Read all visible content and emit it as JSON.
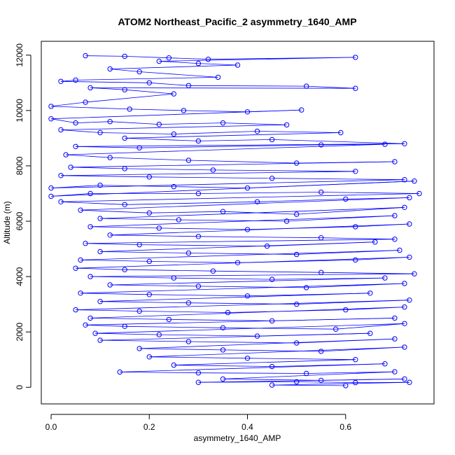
{
  "chart_data": {
    "type": "scatter",
    "title": "ATOM2 Northeast_Pacific_2 asymmetry_1640_AMP",
    "xlabel": "asymmetry_1640_AMP",
    "ylabel": "Altitude (m)",
    "xlim": [
      -0.02,
      0.78
    ],
    "ylim": [
      -600,
      12500
    ],
    "x_ticks": [
      0.0,
      0.2,
      0.4,
      0.6
    ],
    "x_tick_labels": [
      "0.0",
      "0.2",
      "0.4",
      "0.6"
    ],
    "y_ticks": [
      0,
      2000,
      4000,
      6000,
      8000,
      10000,
      12000
    ],
    "y_tick_labels": [
      "0",
      "2000",
      "4000",
      "6000",
      "8000",
      "10000",
      "12000"
    ],
    "grid": false,
    "legend": "none",
    "series_color": "#0000ff",
    "marker": "open-circle",
    "connect_points": true,
    "series": [
      {
        "points": [
          [
            0.07,
            11980
          ],
          [
            0.15,
            11960
          ],
          [
            0.24,
            11900
          ],
          [
            0.32,
            11850
          ],
          [
            0.62,
            11920
          ],
          [
            0.22,
            11780
          ],
          [
            0.3,
            11700
          ],
          [
            0.38,
            11640
          ],
          [
            0.12,
            11500
          ],
          [
            0.18,
            11400
          ],
          [
            0.34,
            11200
          ],
          [
            0.05,
            11100
          ],
          [
            0.02,
            11050
          ],
          [
            0.2,
            11000
          ],
          [
            0.28,
            10900
          ],
          [
            0.52,
            10880
          ],
          [
            0.62,
            10800
          ],
          [
            0.08,
            10820
          ],
          [
            0.15,
            10750
          ],
          [
            0.25,
            10600
          ],
          [
            0.07,
            10300
          ],
          [
            0.0,
            10150
          ],
          [
            0.16,
            10050
          ],
          [
            0.27,
            10000
          ],
          [
            0.4,
            9950
          ],
          [
            0.51,
            10020
          ],
          [
            0.0,
            9700
          ],
          [
            0.05,
            9550
          ],
          [
            0.12,
            9600
          ],
          [
            0.22,
            9500
          ],
          [
            0.35,
            9550
          ],
          [
            0.48,
            9480
          ],
          [
            0.02,
            9300
          ],
          [
            0.1,
            9200
          ],
          [
            0.25,
            9150
          ],
          [
            0.42,
            9250
          ],
          [
            0.59,
            9200
          ],
          [
            0.15,
            9000
          ],
          [
            0.3,
            8900
          ],
          [
            0.45,
            8950
          ],
          [
            0.72,
            8800
          ],
          [
            0.05,
            8700
          ],
          [
            0.18,
            8650
          ],
          [
            0.55,
            8760
          ],
          [
            0.68,
            8780
          ],
          [
            0.03,
            8400
          ],
          [
            0.12,
            8300
          ],
          [
            0.28,
            8200
          ],
          [
            0.5,
            8100
          ],
          [
            0.7,
            8150
          ],
          [
            0.04,
            7950
          ],
          [
            0.15,
            7900
          ],
          [
            0.33,
            7850
          ],
          [
            0.62,
            7800
          ],
          [
            0.02,
            7650
          ],
          [
            0.2,
            7600
          ],
          [
            0.45,
            7550
          ],
          [
            0.72,
            7500
          ],
          [
            0.0,
            7200
          ],
          [
            0.1,
            7300
          ],
          [
            0.25,
            7250
          ],
          [
            0.4,
            7200
          ],
          [
            0.74,
            7450
          ],
          [
            0.0,
            6900
          ],
          [
            0.08,
            7000
          ],
          [
            0.3,
            7000
          ],
          [
            0.55,
            7050
          ],
          [
            0.75,
            7000
          ],
          [
            0.02,
            6700
          ],
          [
            0.15,
            6600
          ],
          [
            0.42,
            6700
          ],
          [
            0.6,
            6800
          ],
          [
            0.73,
            6850
          ],
          [
            0.06,
            6400
          ],
          [
            0.2,
            6300
          ],
          [
            0.35,
            6350
          ],
          [
            0.5,
            6250
          ],
          [
            0.72,
            6500
          ],
          [
            0.1,
            6100
          ],
          [
            0.26,
            6050
          ],
          [
            0.48,
            6000
          ],
          [
            0.7,
            6200
          ],
          [
            0.08,
            5800
          ],
          [
            0.22,
            5750
          ],
          [
            0.4,
            5700
          ],
          [
            0.62,
            5800
          ],
          [
            0.73,
            5900
          ],
          [
            0.12,
            5500
          ],
          [
            0.3,
            5450
          ],
          [
            0.55,
            5400
          ],
          [
            0.7,
            5350
          ],
          [
            0.07,
            5200
          ],
          [
            0.18,
            5150
          ],
          [
            0.44,
            5100
          ],
          [
            0.66,
            5250
          ],
          [
            0.1,
            4900
          ],
          [
            0.28,
            4850
          ],
          [
            0.5,
            4800
          ],
          [
            0.71,
            4950
          ],
          [
            0.06,
            4600
          ],
          [
            0.2,
            4550
          ],
          [
            0.38,
            4500
          ],
          [
            0.62,
            4600
          ],
          [
            0.73,
            4700
          ],
          [
            0.05,
            4300
          ],
          [
            0.15,
            4250
          ],
          [
            0.33,
            4200
          ],
          [
            0.55,
            4150
          ],
          [
            0.74,
            4100
          ],
          [
            0.08,
            4000
          ],
          [
            0.25,
            3950
          ],
          [
            0.45,
            3900
          ],
          [
            0.68,
            3950
          ],
          [
            0.12,
            3700
          ],
          [
            0.3,
            3650
          ],
          [
            0.52,
            3600
          ],
          [
            0.72,
            3750
          ],
          [
            0.06,
            3400
          ],
          [
            0.2,
            3350
          ],
          [
            0.4,
            3300
          ],
          [
            0.65,
            3400
          ],
          [
            0.1,
            3100
          ],
          [
            0.28,
            3050
          ],
          [
            0.5,
            3000
          ],
          [
            0.73,
            3150
          ],
          [
            0.05,
            2800
          ],
          [
            0.18,
            2750
          ],
          [
            0.36,
            2700
          ],
          [
            0.6,
            2800
          ],
          [
            0.72,
            2900
          ],
          [
            0.08,
            2500
          ],
          [
            0.24,
            2450
          ],
          [
            0.45,
            2400
          ],
          [
            0.7,
            2500
          ],
          [
            0.07,
            2250
          ],
          [
            0.15,
            2200
          ],
          [
            0.35,
            2150
          ],
          [
            0.58,
            2100
          ],
          [
            0.72,
            2300
          ],
          [
            0.09,
            1950
          ],
          [
            0.22,
            1900
          ],
          [
            0.42,
            1850
          ],
          [
            0.65,
            1950
          ],
          [
            0.1,
            1700
          ],
          [
            0.28,
            1650
          ],
          [
            0.5,
            1600
          ],
          [
            0.7,
            1750
          ],
          [
            0.18,
            1400
          ],
          [
            0.35,
            1350
          ],
          [
            0.55,
            1300
          ],
          [
            0.72,
            1450
          ],
          [
            0.2,
            1100
          ],
          [
            0.4,
            1050
          ],
          [
            0.62,
            1000
          ],
          [
            0.25,
            800
          ],
          [
            0.45,
            750
          ],
          [
            0.68,
            850
          ],
          [
            0.14,
            550
          ],
          [
            0.3,
            520
          ],
          [
            0.52,
            500
          ],
          [
            0.7,
            560
          ],
          [
            0.35,
            300
          ],
          [
            0.55,
            250
          ],
          [
            0.72,
            300
          ],
          [
            0.3,
            180
          ],
          [
            0.5,
            200
          ],
          [
            0.62,
            170
          ],
          [
            0.73,
            180
          ],
          [
            0.45,
            80
          ],
          [
            0.6,
            60
          ]
        ]
      }
    ]
  }
}
